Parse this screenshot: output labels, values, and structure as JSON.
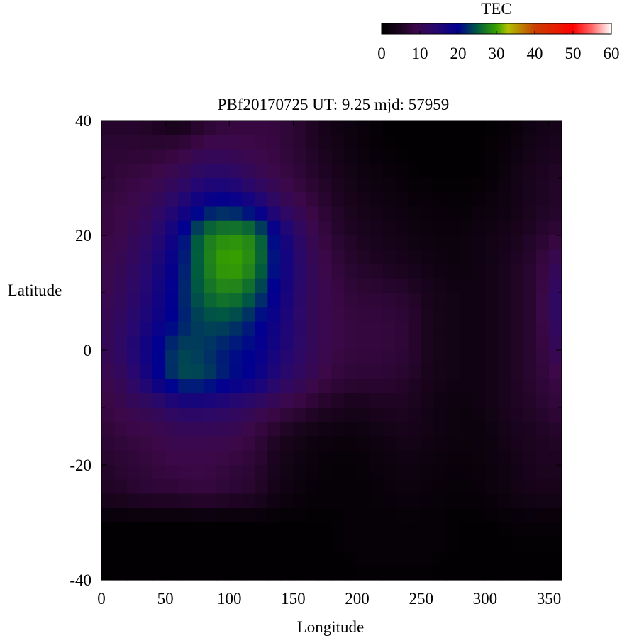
{
  "chart_data": {
    "type": "heatmap",
    "title": "PBf20170725  UT: 9.25  mjd: 57959",
    "xlabel": "Longitude",
    "ylabel": "Latitude",
    "xlim": [
      0,
      360
    ],
    "ylim": [
      -40,
      40
    ],
    "xticks": [
      "0",
      "50",
      "100",
      "150",
      "200",
      "250",
      "300",
      "350"
    ],
    "yticks": [
      "40",
      "20",
      "0",
      "-20",
      "-40"
    ],
    "grid": false,
    "colorbar": {
      "label": "TEC",
      "range": [
        0,
        60
      ],
      "ticks": [
        "0",
        "10",
        "20",
        "30",
        "40",
        "50",
        "60"
      ],
      "placement": "top-right",
      "colormap": [
        [
          0,
          "#000000"
        ],
        [
          5,
          "#1c0420"
        ],
        [
          9,
          "#3c0848"
        ],
        [
          14,
          "#28086e"
        ],
        [
          20,
          "#000090"
        ],
        [
          25,
          "#005a40"
        ],
        [
          30,
          "#38a000"
        ],
        [
          33,
          "#b0c000"
        ],
        [
          40,
          "#c84000"
        ],
        [
          50,
          "#ff0000"
        ],
        [
          55,
          "#ff6a6a"
        ],
        [
          60,
          "#ffffff"
        ]
      ]
    },
    "grid_lon": [
      0,
      20,
      40,
      60,
      80,
      100,
      120,
      140,
      160,
      180,
      200,
      220,
      240,
      260,
      280,
      300,
      320,
      340,
      360
    ],
    "grid_lat": [
      40,
      35,
      30,
      25,
      20,
      15,
      10,
      5,
      0,
      -5,
      -10,
      -15,
      -20,
      -25,
      -30,
      -35,
      -40
    ],
    "values": [
      [
        6,
        6,
        5,
        3,
        6,
        8,
        8,
        8,
        6,
        3,
        2,
        0.5,
        0.5,
        0.5,
        0.5,
        0.5,
        1,
        3,
        4
      ],
      [
        7,
        7,
        7,
        8,
        10,
        10,
        9,
        8,
        6,
        4,
        2,
        1,
        0.5,
        0.5,
        0.5,
        0.5,
        2,
        4,
        5
      ],
      [
        7,
        8,
        9,
        11,
        14,
        14,
        11,
        9,
        7,
        5,
        3,
        2,
        1,
        0.5,
        0.5,
        0.5,
        3,
        5,
        6
      ],
      [
        8,
        9,
        11,
        15,
        20,
        21,
        18,
        12,
        9,
        6,
        4,
        3,
        2,
        1.5,
        1,
        2,
        3,
        5,
        6
      ],
      [
        8,
        10,
        13,
        19,
        27,
        29,
        28,
        18,
        11,
        7,
        5,
        4,
        3,
        2,
        2,
        3,
        4,
        6,
        8
      ],
      [
        9,
        11,
        15,
        20,
        27,
        31,
        28,
        19,
        12,
        8,
        6,
        5,
        4,
        3,
        2,
        3,
        5,
        7,
        12
      ],
      [
        9,
        12,
        16,
        21,
        26,
        28,
        25,
        18,
        12,
        9,
        7,
        7,
        6,
        4,
        3,
        3,
        5,
        7,
        14
      ],
      [
        10,
        13,
        17,
        21,
        24,
        24,
        21,
        17,
        12,
        9,
        8,
        8,
        7,
        4,
        3,
        3,
        5,
        7,
        14
      ],
      [
        10,
        14,
        19,
        24,
        23,
        21,
        20,
        16,
        12,
        9,
        8,
        8,
        7,
        4,
        3,
        3,
        5,
        7,
        12
      ],
      [
        9,
        12,
        18,
        24,
        24,
        21,
        19,
        14,
        11,
        8,
        7,
        7,
        6,
        4,
        3,
        3,
        5,
        7,
        9
      ],
      [
        8,
        10,
        11,
        14,
        14,
        13,
        11,
        9,
        7,
        5,
        4,
        5,
        5,
        3,
        2,
        3,
        5,
        6,
        8
      ],
      [
        7,
        8,
        9,
        10,
        10,
        10,
        8,
        5,
        3,
        2,
        2,
        3,
        4,
        3,
        2,
        2,
        4,
        5,
        6
      ],
      [
        6,
        7,
        8,
        9,
        9,
        8,
        7,
        4,
        2,
        1,
        1,
        2,
        3,
        2,
        1.5,
        2,
        3,
        5,
        5
      ],
      [
        5,
        6,
        7,
        7,
        8,
        7,
        6,
        3,
        1.5,
        1,
        1,
        1.5,
        2,
        1.5,
        1,
        1.5,
        3,
        4,
        4
      ],
      [
        0.5,
        0.5,
        0.5,
        0.5,
        0.5,
        0.5,
        0.5,
        0.5,
        0.5,
        0.5,
        1,
        1,
        1,
        1,
        0.5,
        0.5,
        1,
        1,
        1
      ],
      [
        0.5,
        0.5,
        0.5,
        0.5,
        0.5,
        0.5,
        0.5,
        0.5,
        0.5,
        0.5,
        1,
        1,
        1,
        1,
        0.5,
        0.5,
        0.5,
        0.5,
        0.5
      ],
      [
        0.5,
        0.5,
        0.5,
        0.5,
        0.5,
        0.5,
        0.5,
        0.5,
        0.5,
        0.5,
        0.5,
        0.5,
        0.5,
        0.5,
        0.5,
        0.5,
        0.5,
        0.5,
        0.5
      ]
    ]
  }
}
